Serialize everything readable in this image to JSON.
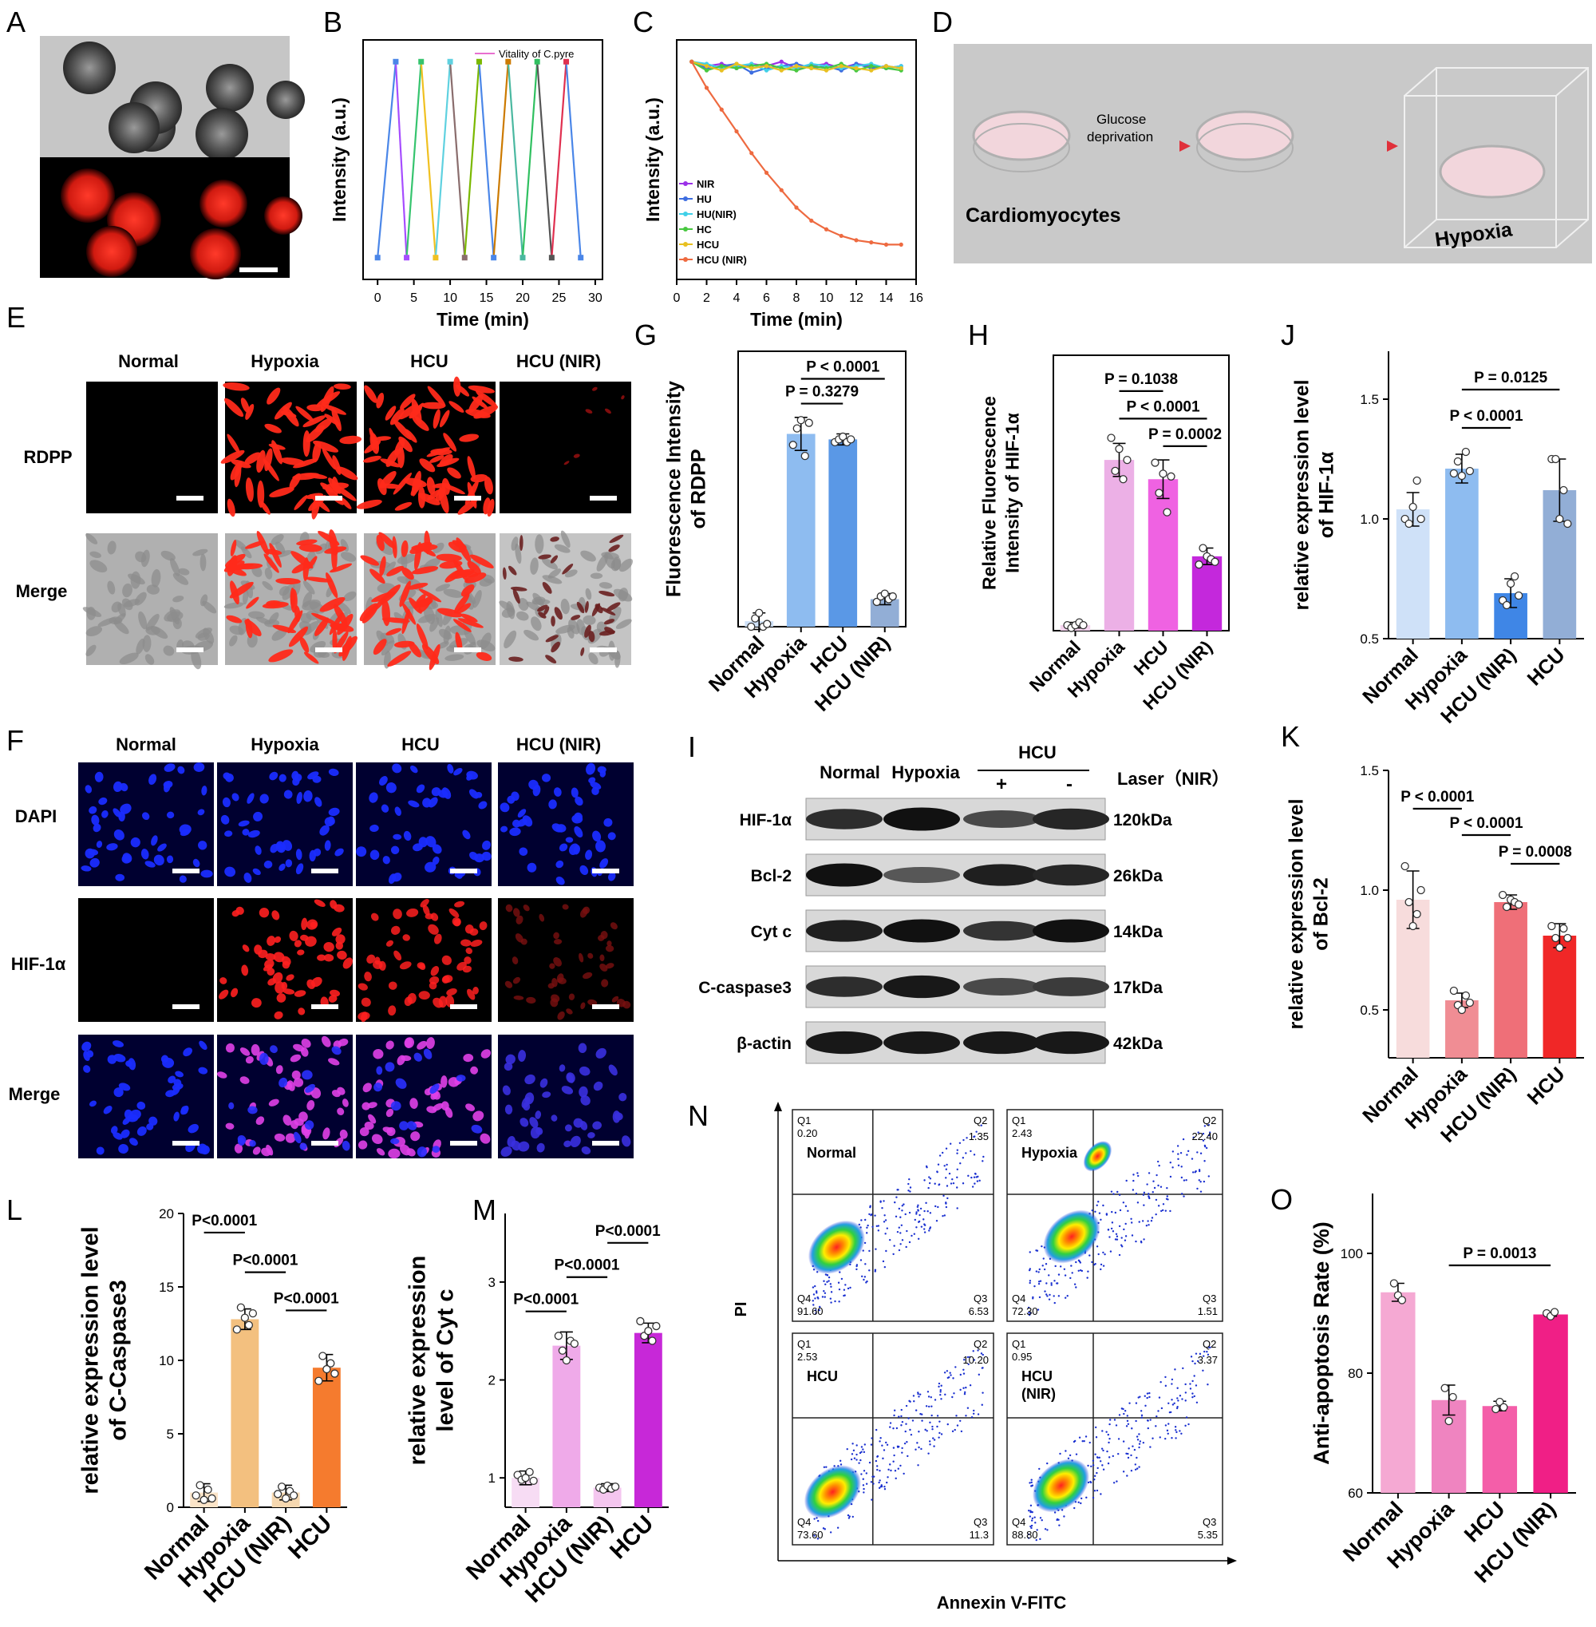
{
  "panel_labels": [
    "A",
    "B",
    "C",
    "D",
    "E",
    "F",
    "G",
    "H",
    "I",
    "J",
    "K",
    "L",
    "M",
    "N",
    "O"
  ],
  "image_labels": {
    "group_names": [
      "Normal",
      "Hypoxia",
      "HCU",
      "HCU (NIR)"
    ],
    "row_E": [
      "RDPP",
      "Merge"
    ],
    "row_F": [
      "DAPI",
      "HIF-1α",
      "Merge"
    ]
  },
  "schematic_D": {
    "step1": "Glucose",
    "step2": "deprivation",
    "cell_label": "Cardiomyocytes",
    "end_label": "Hypoxia"
  },
  "western_blot": {
    "lane_labels": [
      "Normal",
      "Hypoxia"
    ],
    "group_label": "HCU",
    "laser_label": "Laser（NIR）",
    "laser_signs": [
      "+",
      "-"
    ],
    "bands": [
      {
        "protein": "HIF-1α",
        "size": "120kDa",
        "intensity": [
          0.75,
          0.95,
          0.55,
          0.8
        ]
      },
      {
        "protein": "Bcl-2",
        "size": "26kDa",
        "intensity": [
          0.95,
          0.45,
          0.85,
          0.8
        ]
      },
      {
        "protein": "Cyt c",
        "size": "14kDa",
        "intensity": [
          0.85,
          0.95,
          0.7,
          0.95
        ]
      },
      {
        "protein": "C-caspase3",
        "size": "17kDa",
        "intensity": [
          0.75,
          0.9,
          0.55,
          0.65
        ]
      },
      {
        "protein": "β-actin",
        "size": "42kDa",
        "intensity": [
          0.9,
          0.9,
          0.9,
          0.9
        ]
      }
    ]
  },
  "flow_N": {
    "xlabel": "Annexin V-FITC",
    "ylabel": "PI",
    "plots": [
      {
        "name": "Normal",
        "q1": "0.20",
        "q2": "1.35",
        "q3": "6.53",
        "q4": "91.60"
      },
      {
        "name": "Hypoxia",
        "q1": "2.43",
        "q2": "22.40",
        "q3": "1.51",
        "q4": "72.30"
      },
      {
        "name": "HCU",
        "q1": "2.53",
        "q2": "10.20",
        "q3": "11.3",
        "q4": "73.60"
      },
      {
        "name": "HCU\n(NIR)",
        "q1": "0.95",
        "q2": "3.37",
        "q3": "5.35",
        "q4": "88.80"
      }
    ]
  },
  "chart_data": [
    {
      "id": "B",
      "type": "line",
      "xlabel": "Time (min)",
      "ylabel": "Intensity (a.u.)",
      "legend": "Vitality of C.pyre",
      "xlim": [
        -2,
        31
      ],
      "ylim": [
        0,
        1.1
      ],
      "xticks": [
        0,
        5,
        10,
        15,
        20,
        25,
        30
      ],
      "x": [
        0,
        2.5,
        4,
        6,
        8,
        10,
        12,
        14,
        16,
        18,
        20,
        22,
        24,
        26,
        28
      ],
      "y": [
        0.1,
        1,
        0.1,
        1,
        0.1,
        1,
        0.1,
        1,
        0.1,
        1,
        0.1,
        1,
        0.1,
        1,
        0.1
      ],
      "segment_colors": [
        "#4a86e8",
        "#a64dff",
        "#36c46e",
        "#f0c020",
        "#5fd1e0",
        "#8a6d6d",
        "#7ab800",
        "#4a86e8",
        "#cc7a00",
        "#4ab8a0",
        "#30c060",
        "#555555",
        "#e03050",
        "#4a86e8"
      ]
    },
    {
      "id": "C",
      "type": "line",
      "xlabel": "Time (min)",
      "ylabel": "Intensity (a.u.)",
      "xlim": [
        0,
        16
      ],
      "ylim": [
        0,
        1.1
      ],
      "xticks": [
        0,
        2,
        4,
        6,
        8,
        10,
        12,
        14,
        16
      ],
      "x": [
        1,
        2,
        3,
        4,
        5,
        6,
        7,
        8,
        9,
        10,
        11,
        12,
        13,
        14,
        15
      ],
      "series": [
        {
          "name": "NIR",
          "color": "#9b30e8",
          "values": [
            1.0,
            0.98,
            0.99,
            0.97,
            0.99,
            0.98,
            1.0,
            0.97,
            0.98,
            0.99,
            0.97,
            0.99,
            0.98,
            0.97,
            0.98
          ]
        },
        {
          "name": "HU",
          "color": "#3d6de0",
          "values": [
            1.0,
            0.97,
            0.98,
            0.99,
            0.95,
            0.97,
            0.98,
            0.99,
            0.97,
            0.98,
            0.96,
            0.99,
            0.97,
            0.98,
            0.97
          ]
        },
        {
          "name": "HU(NIR)",
          "color": "#40d0e8",
          "values": [
            1.0,
            0.99,
            0.97,
            0.98,
            0.99,
            0.96,
            0.98,
            0.97,
            0.99,
            0.98,
            0.97,
            0.98,
            0.99,
            0.97,
            0.98
          ]
        },
        {
          "name": "HC",
          "color": "#48c840",
          "values": [
            1.0,
            0.96,
            0.98,
            0.97,
            0.98,
            0.99,
            0.97,
            0.96,
            0.98,
            0.97,
            0.99,
            0.96,
            0.98,
            0.97,
            0.96
          ]
        },
        {
          "name": "HCU",
          "color": "#e8c020",
          "values": [
            1.0,
            0.98,
            0.96,
            0.99,
            0.97,
            0.98,
            0.96,
            0.98,
            0.97,
            0.96,
            0.98,
            0.97,
            0.96,
            0.98,
            0.97
          ]
        },
        {
          "name": "HCU (NIR)",
          "color": "#ee6a40",
          "values": [
            1.0,
            0.88,
            0.78,
            0.68,
            0.58,
            0.49,
            0.41,
            0.33,
            0.27,
            0.23,
            0.2,
            0.18,
            0.17,
            0.16,
            0.16
          ]
        }
      ]
    },
    {
      "id": "G",
      "type": "bar",
      "ylabel_lines": [
        "Fluorescence Intensity",
        "of RDPP"
      ],
      "categories": [
        "Normal",
        "Hypoxia",
        "HCU",
        "HCU (NIR)"
      ],
      "values": [
        0.02,
        0.7,
        0.68,
        0.1
      ],
      "errors": [
        0.03,
        0.06,
        0.02,
        0.02
      ],
      "ylim": [
        0,
        1
      ],
      "colors": [
        "#cfe1f8",
        "#8ebcf0",
        "#5a98e6",
        "#92aed6"
      ],
      "dots": [
        [
          0.0,
          0.03,
          0.05,
          0.0,
          0.01
        ],
        [
          0.66,
          0.72,
          0.75,
          0.62,
          0.74
        ],
        [
          0.67,
          0.68,
          0.69,
          0.67,
          0.68
        ],
        [
          0.09,
          0.11,
          0.12,
          0.1,
          0.11
        ]
      ],
      "brackets": [
        {
          "from": 1,
          "to": 2,
          "label": "P = 0.3279",
          "level": 0.81
        },
        {
          "from": 1,
          "to": 3,
          "label": "P < 0.0001",
          "level": 0.9
        }
      ]
    },
    {
      "id": "H",
      "type": "bar",
      "ylabel_lines": [
        "Relative Fluorescence",
        "Intensity of HIF-1α"
      ],
      "categories": [
        "Normal",
        "Hypoxia",
        "HCU",
        "HCU (NIR)"
      ],
      "values": [
        0.02,
        0.62,
        0.55,
        0.27
      ],
      "errors": [
        0.01,
        0.06,
        0.07,
        0.03
      ],
      "ylim": [
        0,
        1
      ],
      "colors": [
        "#f4d3ee",
        "#ecb0e6",
        "#ef62e2",
        "#c428dc"
      ],
      "dots": [
        [
          0.02,
          0.01,
          0.02,
          0.03,
          0.02
        ],
        [
          0.7,
          0.58,
          0.66,
          0.55,
          0.62
        ],
        [
          0.61,
          0.5,
          0.57,
          0.43,
          0.56
        ],
        [
          0.24,
          0.3,
          0.27,
          0.26,
          0.25
        ]
      ],
      "brackets": [
        {
          "from": 1,
          "to": 2,
          "label": "P = 0.1038",
          "level": 0.87
        },
        {
          "from": 1,
          "to": 3,
          "label": "P < 0.0001",
          "level": 0.77
        },
        {
          "from": 2,
          "to": 3,
          "label": "P = 0.0002",
          "level": 0.67
        }
      ]
    },
    {
      "id": "J",
      "type": "bar",
      "ylabel_lines": [
        "relative  expression level",
        "of HIF-1α"
      ],
      "categories": [
        "Normal",
        "Hypoxia",
        "HCU (NIR)",
        "HCU"
      ],
      "values": [
        1.04,
        1.21,
        0.69,
        1.12
      ],
      "errors": [
        0.07,
        0.06,
        0.06,
        0.13
      ],
      "ylim": [
        0.5,
        1.7
      ],
      "yticks": [
        0.5,
        1.0,
        1.5
      ],
      "colors": [
        "#cfe1f8",
        "#8ebcf0",
        "#3f86e6",
        "#92aed6"
      ],
      "dots": [
        [
          1.0,
          0.98,
          1.05,
          1.16,
          1.0
        ],
        [
          1.19,
          1.24,
          1.18,
          1.28,
          1.2
        ],
        [
          0.66,
          0.64,
          0.73,
          0.76,
          0.68
        ],
        [
          1.25,
          1.25,
          1.0,
          1.12,
          0.98
        ]
      ],
      "brackets": [
        {
          "from": 1,
          "to": 2,
          "label": "P < 0.0001",
          "level": 1.38
        },
        {
          "from": 1,
          "to": 3,
          "label": "P = 0.0125",
          "level": 1.54
        }
      ]
    },
    {
      "id": "K",
      "type": "bar",
      "ylabel_lines": [
        "relative expression level",
        "of Bcl-2"
      ],
      "categories": [
        "Normal",
        "Hypoxia",
        "HCU (NIR)",
        "HCU"
      ],
      "values": [
        0.96,
        0.54,
        0.95,
        0.81
      ],
      "errors": [
        0.12,
        0.03,
        0.03,
        0.05
      ],
      "ylim": [
        0.3,
        1.5
      ],
      "yticks": [
        0.5,
        1.0,
        1.5
      ],
      "colors": [
        "#f7dcdc",
        "#f08d94",
        "#ef6f78",
        "#f02727"
      ],
      "dots": [
        [
          1.1,
          0.95,
          0.85,
          0.9,
          1.0
        ],
        [
          0.58,
          0.52,
          0.5,
          0.56,
          0.53
        ],
        [
          0.98,
          0.93,
          0.96,
          0.95,
          0.94
        ],
        [
          0.85,
          0.8,
          0.76,
          0.84,
          0.8
        ]
      ],
      "brackets": [
        {
          "from": 0,
          "to": 1,
          "label": "P < 0.0001",
          "level": 1.34
        },
        {
          "from": 1,
          "to": 2,
          "label": "P < 0.0001",
          "level": 1.23
        },
        {
          "from": 2,
          "to": 3,
          "label": "P = 0.0008",
          "level": 1.11
        }
      ]
    },
    {
      "id": "L",
      "type": "bar",
      "ylabel_lines": [
        "relative expression level",
        "of C-Caspase3"
      ],
      "categories": [
        "Normal",
        "Hypoxia",
        "HCU (NIR)",
        "HCU"
      ],
      "values": [
        1.0,
        12.8,
        1.0,
        9.5
      ],
      "errors": [
        0.6,
        0.7,
        0.5,
        0.9
      ],
      "ylim": [
        0,
        20
      ],
      "yticks": [
        0,
        5,
        10,
        15,
        20
      ],
      "colors": [
        "#fbe4c8",
        "#f3c07f",
        "#f6d8b0",
        "#f57b2e"
      ],
      "dots": [
        [
          0.8,
          1.5,
          0.5,
          1.2,
          0.6
        ],
        [
          12.1,
          13.6,
          12.9,
          12.4,
          13.2
        ],
        [
          0.9,
          1.4,
          0.6,
          1.1,
          0.8
        ],
        [
          8.6,
          10.3,
          9.4,
          9.8,
          9.1
        ]
      ],
      "brackets": [
        {
          "from": 0,
          "to": 1,
          "label": "P<0.0001",
          "level": 18.7
        },
        {
          "from": 1,
          "to": 2,
          "label": "P<0.0001",
          "level": 16.0
        },
        {
          "from": 2,
          "to": 3,
          "label": "P<0.0001",
          "level": 13.4
        }
      ]
    },
    {
      "id": "M",
      "type": "bar",
      "ylabel_lines": [
        "relative expression",
        "level of Cyt c"
      ],
      "categories": [
        "Normal",
        "Hypoxia",
        "HCU (NIR)",
        "HCU"
      ],
      "values": [
        1.0,
        2.35,
        0.9,
        2.48
      ],
      "errors": [
        0.07,
        0.14,
        0.04,
        0.1
      ],
      "ylim": [
        0.7,
        3.7
      ],
      "yticks": [
        1,
        2,
        3
      ],
      "colors": [
        "#f7dcf4",
        "#efaae9",
        "#f4c6ef",
        "#c728d8"
      ],
      "dots": [
        [
          1.03,
          0.98,
          1.0,
          1.06,
          0.97
        ],
        [
          2.45,
          2.3,
          2.2,
          2.4,
          2.37
        ],
        [
          0.9,
          0.88,
          0.92,
          0.89,
          0.91
        ],
        [
          2.6,
          2.45,
          2.5,
          2.4,
          2.55
        ]
      ],
      "brackets": [
        {
          "from": 0,
          "to": 1,
          "label": "P<0.0001",
          "level": 2.7
        },
        {
          "from": 1,
          "to": 2,
          "label": "P<0.0001",
          "level": 3.05
        },
        {
          "from": 2,
          "to": 3,
          "label": "P<0.0001",
          "level": 3.4
        }
      ]
    },
    {
      "id": "O",
      "type": "bar",
      "ylabel_lines": [
        "Anti-apoptosis Rate (%)"
      ],
      "categories": [
        "Normal",
        "Hypoxia",
        "HCU",
        "HCU (NIR)"
      ],
      "values": [
        93.5,
        75.5,
        74.5,
        89.8
      ],
      "errors": [
        1.5,
        2.5,
        0.8,
        0.3
      ],
      "ylim": [
        60,
        110
      ],
      "yticks": [
        60,
        80,
        100
      ],
      "colors": [
        "#f5a9d3",
        "#ef84c0",
        "#f45ea9",
        "#f01f86"
      ],
      "dots": [
        [
          95.0,
          93.0,
          92.2
        ],
        [
          77.5,
          72.0,
          76.0
        ],
        [
          74.0,
          75.2,
          74.3
        ],
        [
          90.0,
          89.5,
          90.2
        ]
      ],
      "brackets": [
        {
          "from": 1,
          "to": 3,
          "label": "P = 0.0013",
          "level": 98.0
        }
      ]
    }
  ]
}
